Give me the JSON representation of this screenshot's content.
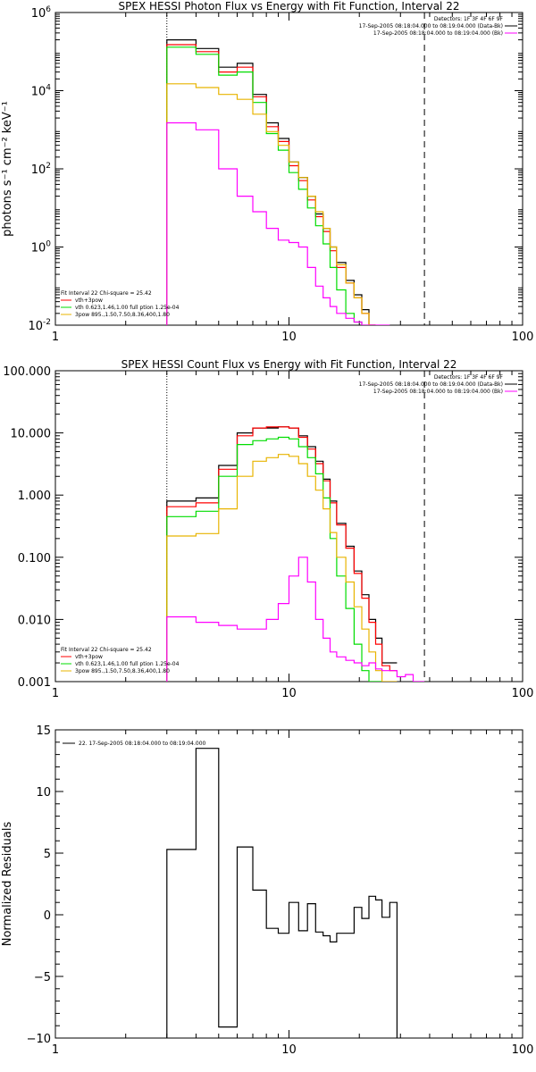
{
  "chart_data": [
    {
      "type": "line",
      "scale": "log-log",
      "title": "SPEX HESSI Photon Flux vs Energy with Fit Function, Interval 22",
      "ylabel": "photons s⁻¹ cm⁻² keV⁻¹",
      "xlim": [
        1,
        100
      ],
      "ylim": [
        0.01,
        1000000
      ],
      "xticks": [
        "1",
        "10",
        "100"
      ],
      "yticks": [
        {
          "v": 1000000,
          "base": "10",
          "exp": "6"
        },
        {
          "v": 10000,
          "base": "10",
          "exp": "4"
        },
        {
          "v": 100,
          "base": "10",
          "exp": "2"
        },
        {
          "v": 1,
          "base": "10",
          "exp": "0"
        },
        {
          "v": 0.01,
          "base": "10",
          "exp": "-2"
        }
      ],
      "vlines": [
        {
          "x": 3.0,
          "style": "dotted",
          "color": "#000000"
        },
        {
          "x": 38,
          "style": "dashed",
          "color": "#000000"
        }
      ],
      "legend_top": [
        "Detectors: 1F 3F 4F 6F 9F",
        "17-Sep-2005 08:18:04.000 to 08:19:04.000 (Data-Bk)",
        "17-Sep-2005 08:18:04.000 to 08:19:04.000 (Bk)"
      ],
      "legend_top_colors": [
        "",
        "#000000",
        "#ff00ff"
      ],
      "legend_bottom": [
        "Fit Interval 22   Chi-square = 25.42",
        "vth+3pow",
        "vth 0.623,1.46,1.00  full ption 1.25e-04",
        "3pow 895.,1.50,7.50,8.36,400,1.80"
      ],
      "legend_bottom_colors": [
        "",
        "#ff0000",
        "#00dd00",
        "#e8b400"
      ],
      "edges": [
        3.0,
        4.0,
        5.0,
        6.0,
        7.0,
        8.0,
        9.0,
        10.0,
        11.0,
        12.0,
        13.0,
        14.0,
        15.0,
        16.0,
        17.5,
        19.0,
        20.5,
        22.0,
        23.5,
        25.0,
        27.0,
        29.0,
        31.5,
        34.0,
        36.5,
        38.0
      ],
      "series": [
        {
          "color": "#000000",
          "values": [
            200000,
            120000,
            40000,
            50000,
            8000,
            1500,
            600,
            150,
            60,
            20,
            7,
            3,
            1.0,
            0.4,
            0.14,
            0.06,
            0.025,
            0.01
          ]
        },
        {
          "color": "#ff0000",
          "values": [
            150000,
            100000,
            30000,
            40000,
            7000,
            1200,
            500,
            120,
            50,
            16,
            6,
            2.5,
            0.8,
            0.3,
            0.12,
            0.05,
            0.02,
            0.008
          ]
        },
        {
          "color": "#00dd00",
          "values": [
            130000,
            85000,
            25000,
            30000,
            5000,
            800,
            300,
            80,
            30,
            10,
            3.5,
            1.2,
            0.3,
            0.08,
            0.02,
            0.012,
            0.01,
            0.01
          ]
        },
        {
          "color": "#e8b400",
          "values": [
            15000,
            12000,
            8000,
            6000,
            2500,
            900,
            400,
            150,
            60,
            20,
            8,
            3,
            1.0,
            0.35,
            0.12,
            0.05,
            0.02,
            0.008
          ]
        },
        {
          "color": "#ff00ff",
          "values": [
            1500,
            1000,
            100,
            20,
            8,
            3,
            1.5,
            1.3,
            1.0,
            0.3,
            0.1,
            0.05,
            0.03,
            0.02,
            0.015,
            0.012,
            0.01,
            0.009,
            0.008,
            0.007
          ]
        }
      ]
    },
    {
      "type": "line",
      "scale": "log-log",
      "title": "SPEX HESSI Count Flux vs Energy with Fit Function, Interval 22",
      "ylabel": "",
      "xlim": [
        1,
        100
      ],
      "ylim": [
        0.001,
        100
      ],
      "xticks": [
        "1",
        "10",
        "100"
      ],
      "yticks": [
        {
          "v": 100,
          "label": "100.000"
        },
        {
          "v": 10,
          "label": "10.000"
        },
        {
          "v": 1,
          "label": "1.000"
        },
        {
          "v": 0.1,
          "label": "0.100"
        },
        {
          "v": 0.01,
          "label": "0.010"
        },
        {
          "v": 0.001,
          "label": "0.001"
        }
      ],
      "vlines": [
        {
          "x": 3.0,
          "style": "dotted",
          "color": "#000000"
        },
        {
          "x": 38,
          "style": "dashed",
          "color": "#000000"
        }
      ],
      "legend_top": [
        "Detectors: 1F 3F 4F 6F 9F",
        "17-Sep-2005 08:18:04.000 to 08:19:04.000 (Data-Bk)",
        "17-Sep-2005 08:18:04.000 to 08:19:04.000 (Bk)"
      ],
      "legend_top_colors": [
        "",
        "#000000",
        "#ff00ff"
      ],
      "legend_bottom": [
        "Fit Interval 22   Chi-square = 25.42",
        "vth+3pow",
        "vth 0.623,1.46,1.00  full ption 1.25e-04",
        "3pow 895.,1.50,7.50,8.36,400,1.80"
      ],
      "legend_bottom_colors": [
        "",
        "#ff0000",
        "#00dd00",
        "#e8b400"
      ],
      "edges": [
        3.0,
        4.0,
        5.0,
        6.0,
        7.0,
        8.0,
        9.0,
        10.0,
        11.0,
        12.0,
        13.0,
        14.0,
        15.0,
        16.0,
        17.5,
        19.0,
        20.5,
        22.0,
        23.5,
        25.0,
        27.0,
        29.0,
        31.5,
        34.0,
        36.5,
        38.0
      ],
      "series": [
        {
          "color": "#000000",
          "values": [
            0.8,
            0.9,
            3.0,
            10.0,
            12.0,
            12.0,
            12.5,
            12.0,
            9.0,
            6.0,
            3.5,
            1.8,
            0.8,
            0.35,
            0.15,
            0.06,
            0.025,
            0.01,
            0.005,
            0.002,
            0.002
          ]
        },
        {
          "color": "#ff0000",
          "values": [
            0.65,
            0.75,
            2.6,
            9.0,
            12.0,
            12.5,
            12.5,
            12.0,
            8.5,
            5.5,
            3.2,
            1.7,
            0.75,
            0.33,
            0.14,
            0.055,
            0.022,
            0.009,
            0.004,
            0.0018,
            0.0015
          ]
        },
        {
          "color": "#00dd00",
          "values": [
            0.45,
            0.55,
            2.0,
            6.5,
            7.5,
            8.0,
            8.5,
            8.0,
            6.0,
            4.0,
            2.2,
            0.9,
            0.2,
            0.05,
            0.015,
            0.004,
            0.0015,
            0.0008,
            0.0008
          ]
        },
        {
          "color": "#e8b400",
          "values": [
            0.22,
            0.24,
            0.6,
            2.0,
            3.5,
            4.0,
            4.5,
            4.2,
            3.2,
            2.0,
            1.2,
            0.6,
            0.25,
            0.1,
            0.04,
            0.016,
            0.007,
            0.003,
            0.0015,
            0.0008,
            0.0008
          ]
        },
        {
          "color": "#ff00ff",
          "values": [
            0.011,
            0.009,
            0.008,
            0.007,
            0.007,
            0.01,
            0.018,
            0.05,
            0.1,
            0.04,
            0.01,
            0.005,
            0.003,
            0.0025,
            0.0022,
            0.002,
            0.0018,
            0.002,
            0.0016,
            0.0015,
            0.0015,
            0.0012,
            0.0013,
            0.001,
            0.0009
          ]
        }
      ]
    },
    {
      "type": "line",
      "scale": "log-x",
      "title": "",
      "ylabel": "Normalized Residuals",
      "xlim": [
        1,
        100
      ],
      "ylim": [
        -10,
        15
      ],
      "xticks": [
        "1",
        "10",
        "100"
      ],
      "yticks": [
        {
          "v": 15,
          "label": "15"
        },
        {
          "v": 10,
          "label": "10"
        },
        {
          "v": 5,
          "label": "5"
        },
        {
          "v": 0,
          "label": "0"
        },
        {
          "v": -5,
          "label": "−5"
        },
        {
          "v": -10,
          "label": "−10"
        }
      ],
      "legend_top": [
        "22. 17-Sep-2005 08:18:04.000 to 08:19:04.000"
      ],
      "edges": [
        3.0,
        4.0,
        5.0,
        6.0,
        7.0,
        8.0,
        9.0,
        10.0,
        11.0,
        12.0,
        13.0,
        14.0,
        15.0,
        16.0,
        17.5,
        19.0,
        20.5,
        22.0,
        23.5,
        25.0,
        27.0,
        29.0,
        31.5,
        34.0,
        36.5,
        38.0
      ],
      "series": [
        {
          "color": "#000000",
          "close_to": -10,
          "values": [
            5.3,
            13.5,
            -9.1,
            5.5,
            2.0,
            -1.1,
            -1.5,
            1.0,
            -1.3,
            0.9,
            -1.4,
            -1.7,
            -2.2,
            -1.5,
            -1.5,
            0.6,
            -0.3,
            1.5,
            1.2,
            -0.2,
            1.0
          ]
        }
      ]
    }
  ]
}
